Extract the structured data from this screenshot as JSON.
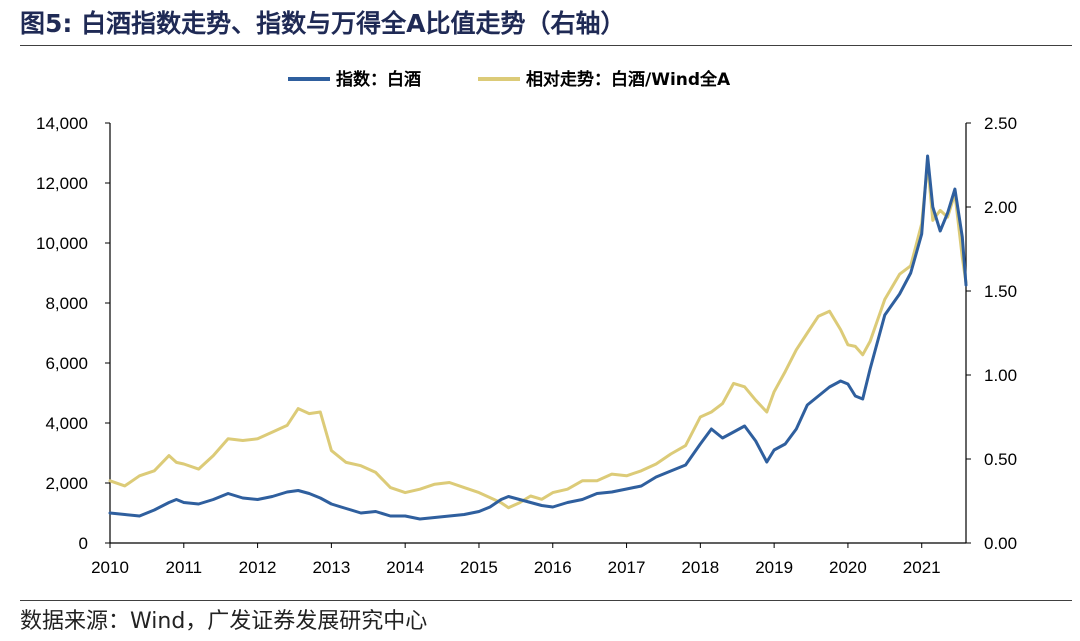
{
  "figure": {
    "title": "图5:  白酒指数走势、指数与万得全A比值走势（右轴）",
    "source": "数据来源：Wind，广发证券发展研究中心"
  },
  "colors": {
    "index_line": "#2f5f9e",
    "ratio_line": "#dccb78",
    "axis": "#000000"
  },
  "chart_data": {
    "type": "line",
    "title": "",
    "xlabel": "",
    "ylabel": "",
    "legend_position": "top-center",
    "grid": false,
    "x_ticks": [
      "2010",
      "2011",
      "2012",
      "2013",
      "2014",
      "2015",
      "2016",
      "2017",
      "2018",
      "2019",
      "2020",
      "2021"
    ],
    "x_range": [
      2010.0,
      2021.6
    ],
    "y_left": {
      "range": [
        0,
        14000
      ],
      "ticks": [
        "0",
        "2,000",
        "4,000",
        "6,000",
        "8,000",
        "10,000",
        "12,000",
        "14,000"
      ]
    },
    "y_right": {
      "range": [
        0,
        2.5
      ],
      "ticks": [
        "0.00",
        "0.50",
        "1.00",
        "1.50",
        "2.00",
        "2.50"
      ]
    },
    "series": [
      {
        "name": "指数：白酒",
        "axis": "left",
        "x": [
          2010.0,
          2010.2,
          2010.4,
          2010.6,
          2010.8,
          2010.9,
          2011.0,
          2011.2,
          2011.4,
          2011.6,
          2011.8,
          2012.0,
          2012.2,
          2012.4,
          2012.55,
          2012.7,
          2012.85,
          2013.0,
          2013.2,
          2013.4,
          2013.6,
          2013.8,
          2014.0,
          2014.2,
          2014.4,
          2014.6,
          2014.8,
          2015.0,
          2015.15,
          2015.3,
          2015.4,
          2015.55,
          2015.7,
          2015.85,
          2016.0,
          2016.2,
          2016.4,
          2016.6,
          2016.8,
          2017.0,
          2017.2,
          2017.4,
          2017.6,
          2017.8,
          2018.0,
          2018.15,
          2018.3,
          2018.45,
          2018.6,
          2018.75,
          2018.9,
          2019.0,
          2019.15,
          2019.3,
          2019.45,
          2019.6,
          2019.75,
          2019.9,
          2020.0,
          2020.1,
          2020.2,
          2020.3,
          2020.5,
          2020.7,
          2020.85,
          2021.0,
          2021.08,
          2021.15,
          2021.25,
          2021.35,
          2021.45,
          2021.55,
          2021.6
        ],
        "values": [
          1000,
          950,
          900,
          1100,
          1350,
          1450,
          1350,
          1300,
          1450,
          1650,
          1500,
          1450,
          1550,
          1700,
          1750,
          1650,
          1500,
          1300,
          1150,
          1000,
          1050,
          900,
          900,
          800,
          850,
          900,
          950,
          1050,
          1200,
          1450,
          1550,
          1450,
          1350,
          1250,
          1200,
          1350,
          1450,
          1650,
          1700,
          1800,
          1900,
          2200,
          2400,
          2600,
          3300,
          3800,
          3500,
          3700,
          3900,
          3400,
          2700,
          3100,
          3300,
          3800,
          4600,
          4900,
          5200,
          5400,
          5300,
          4900,
          4800,
          5800,
          7600,
          8300,
          9000,
          10300,
          12900,
          11200,
          10400,
          11000,
          11800,
          10200,
          8600
        ]
      },
      {
        "name": "相对走势：白酒/Wind全A",
        "axis": "right",
        "x": [
          2010.0,
          2010.2,
          2010.4,
          2010.6,
          2010.8,
          2010.9,
          2011.0,
          2011.2,
          2011.4,
          2011.6,
          2011.8,
          2012.0,
          2012.2,
          2012.4,
          2012.55,
          2012.7,
          2012.85,
          2013.0,
          2013.2,
          2013.4,
          2013.6,
          2013.8,
          2014.0,
          2014.2,
          2014.4,
          2014.6,
          2014.8,
          2015.0,
          2015.15,
          2015.3,
          2015.4,
          2015.55,
          2015.7,
          2015.85,
          2016.0,
          2016.2,
          2016.4,
          2016.6,
          2016.8,
          2017.0,
          2017.2,
          2017.4,
          2017.6,
          2017.8,
          2018.0,
          2018.15,
          2018.3,
          2018.45,
          2018.6,
          2018.75,
          2018.9,
          2019.0,
          2019.15,
          2019.3,
          2019.45,
          2019.6,
          2019.75,
          2019.9,
          2020.0,
          2020.1,
          2020.2,
          2020.3,
          2020.5,
          2020.7,
          2020.85,
          2021.0,
          2021.08,
          2021.15,
          2021.25,
          2021.35,
          2021.45,
          2021.55,
          2021.6
        ],
        "values": [
          0.37,
          0.34,
          0.4,
          0.43,
          0.52,
          0.48,
          0.47,
          0.44,
          0.52,
          0.62,
          0.61,
          0.62,
          0.66,
          0.7,
          0.8,
          0.77,
          0.78,
          0.55,
          0.48,
          0.46,
          0.42,
          0.33,
          0.3,
          0.32,
          0.35,
          0.36,
          0.33,
          0.3,
          0.27,
          0.24,
          0.21,
          0.24,
          0.28,
          0.26,
          0.3,
          0.32,
          0.37,
          0.37,
          0.41,
          0.4,
          0.43,
          0.47,
          0.53,
          0.58,
          0.75,
          0.78,
          0.83,
          0.95,
          0.93,
          0.85,
          0.78,
          0.9,
          1.02,
          1.15,
          1.25,
          1.35,
          1.38,
          1.27,
          1.18,
          1.17,
          1.12,
          1.2,
          1.45,
          1.6,
          1.65,
          1.9,
          2.26,
          1.92,
          1.98,
          1.94,
          2.08,
          1.7,
          1.55
        ]
      }
    ]
  }
}
